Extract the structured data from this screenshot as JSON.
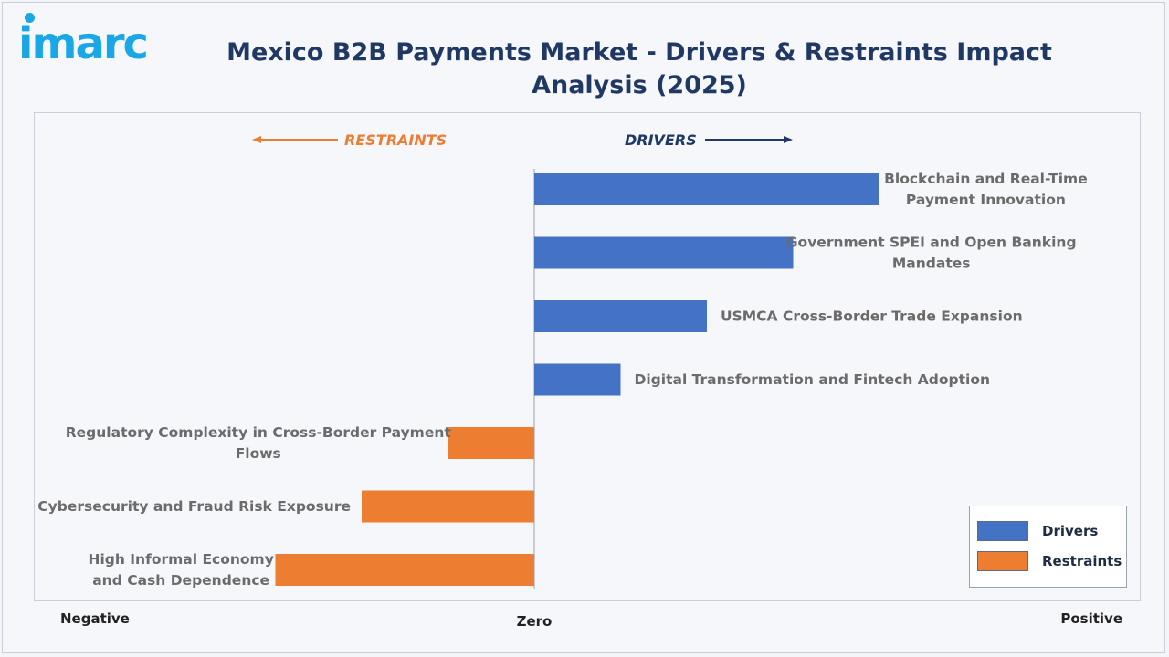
{
  "logo": {
    "text": "imarc",
    "color": "#1aa7e6"
  },
  "title": "Mexico B2B Payments Market - Drivers & Restraints Impact Analysis (2025)",
  "direction_labels": {
    "restraints": "RESTRAINTS",
    "drivers": "DRIVERS",
    "restraints_color": "#ed7d31",
    "drivers_color": "#1f3864"
  },
  "axis": {
    "negative": "Negative",
    "zero": "Zero",
    "positive": "Positive"
  },
  "legend": {
    "drivers": "Drivers",
    "restraints": "Restraints"
  },
  "colors": {
    "drivers": "#4472c4",
    "restraints": "#ed7d31"
  },
  "chart_data": {
    "type": "bar",
    "orientation": "horizontal",
    "xlim": [
      -5,
      8
    ],
    "categories": [
      [
        "Blockchain and Real-Time",
        "Payment Innovation"
      ],
      [
        "Government SPEI and Open Banking",
        "Mandates"
      ],
      [
        "USMCA Cross-Border Trade Expansion"
      ],
      [
        "Digital Transformation and Fintech Adoption"
      ],
      [
        "Regulatory Complexity in Cross-Border Payment",
        "Flows"
      ],
      [
        "Cybersecurity and Fraud Risk Exposure"
      ],
      [
        "High Informal Economy",
        "and Cash Dependence"
      ]
    ],
    "series": [
      {
        "name": "Drivers",
        "values": [
          4.0,
          3.0,
          2.0,
          1.0,
          0,
          0,
          0
        ]
      },
      {
        "name": "Restraints",
        "values": [
          0,
          0,
          0,
          0,
          -1.0,
          -2.0,
          -3.0
        ]
      }
    ],
    "legend_position": "bottom-right"
  }
}
